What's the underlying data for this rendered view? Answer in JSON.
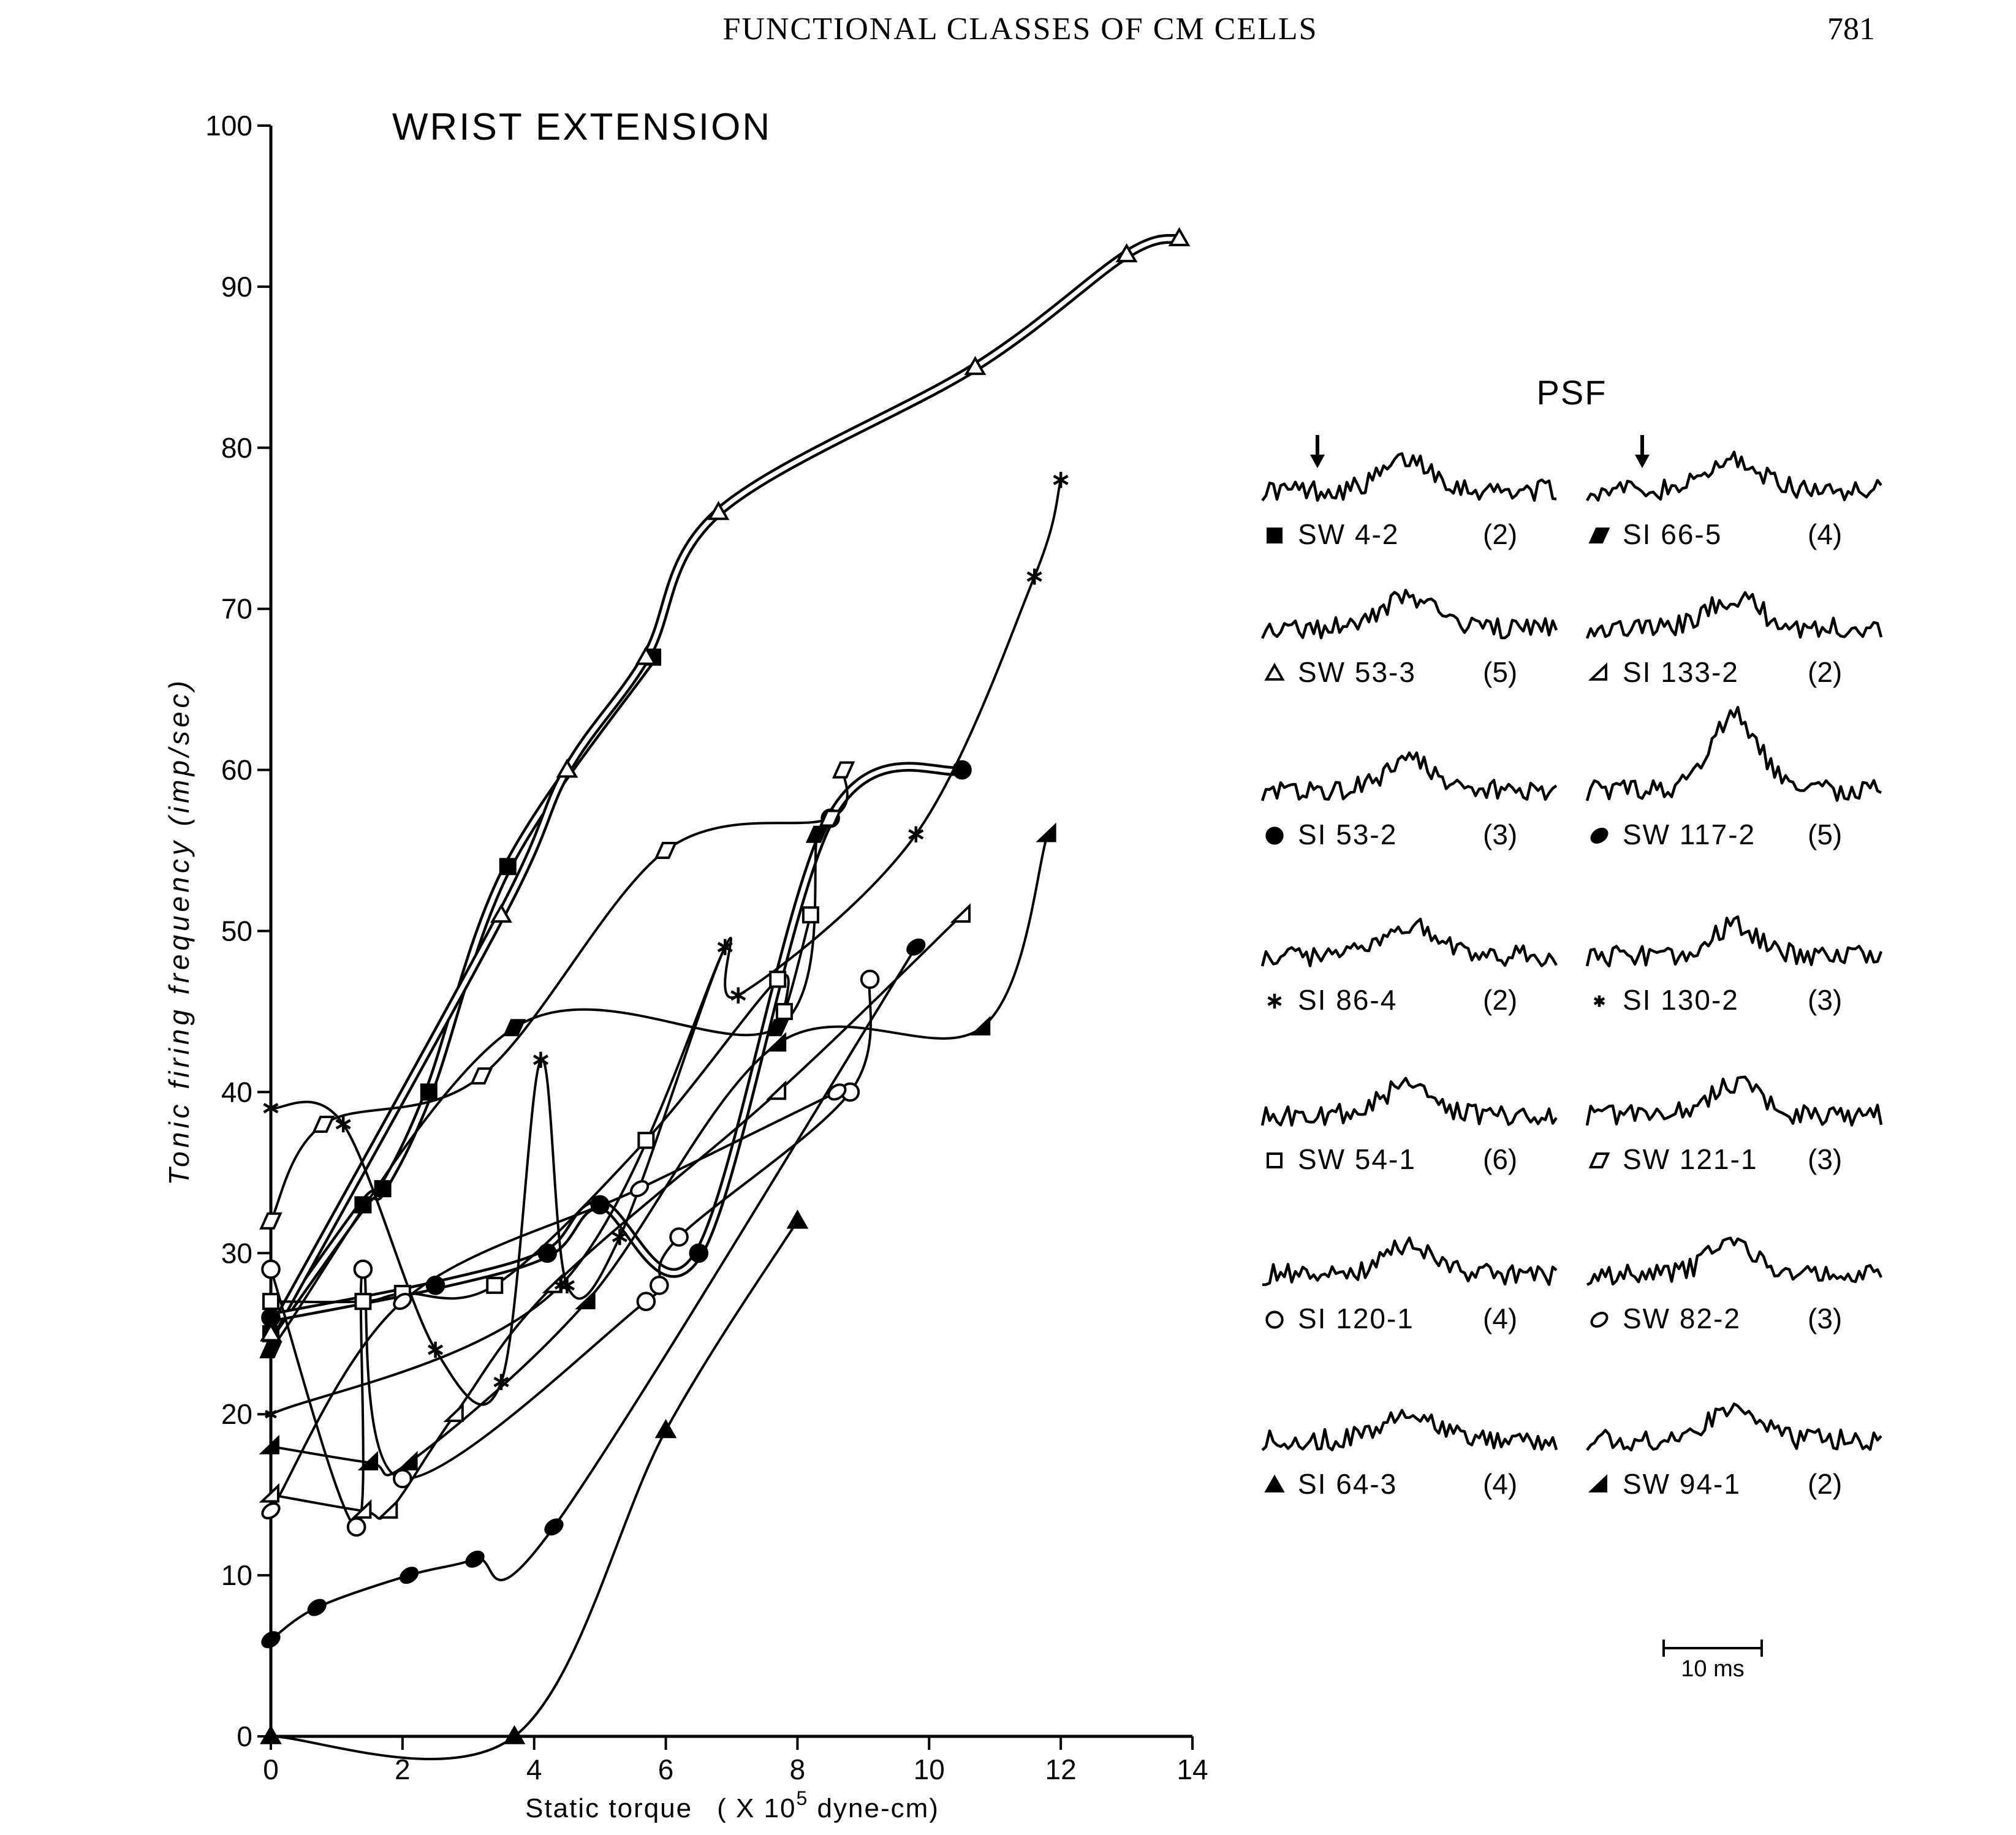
{
  "page": {
    "running_head": "FUNCTIONAL CLASSES OF CM CELLS",
    "page_number": "781"
  },
  "chart_data": {
    "type": "line",
    "title": "WRIST EXTENSION",
    "xlabel": "Static torque",
    "xlabel_unit_prefix": "( X 10",
    "xlabel_unit_exp": "5",
    "xlabel_unit_suffix": " dyne-cm)",
    "ylabel": "Tonic firing frequency (imp/sec)",
    "xlim": [
      0,
      14
    ],
    "ylim": [
      0,
      100
    ],
    "x_ticks": [
      "0",
      "2",
      "4",
      "6",
      "8",
      "10",
      "12",
      "14"
    ],
    "y_ticks": [
      "0",
      "10",
      "20",
      "30",
      "40",
      "50",
      "60",
      "70",
      "80",
      "90",
      "100"
    ],
    "grid": false,
    "series": [
      {
        "name": "SW 4-2",
        "marker": "filled-square",
        "style": "double",
        "x": [
          0,
          1.4,
          1.7,
          2.4,
          3.6,
          5.8
        ],
        "y": [
          25,
          33,
          34,
          40,
          54,
          67
        ]
      },
      {
        "name": "SW 53-3",
        "marker": "open-triangle",
        "style": "double",
        "x": [
          0,
          3.5,
          4.5,
          5.7,
          6.8,
          10.7,
          13,
          13.8
        ],
        "y": [
          25,
          51,
          60,
          67,
          76,
          85,
          92,
          93
        ]
      },
      {
        "name": "SI 53-2",
        "marker": "filled-circle",
        "style": "double",
        "x": [
          0,
          2.5,
          4.2,
          5,
          6.5,
          8.5,
          10.5
        ],
        "y": [
          26,
          28,
          30,
          33,
          30,
          57,
          60
        ]
      },
      {
        "name": "SI 86-4",
        "marker": "asterisk",
        "style": "single",
        "x": [
          0,
          1.1,
          2.5,
          3.5,
          4.1,
          4.5,
          5.3,
          6.9,
          7.1,
          9.8,
          11.6,
          12
        ],
        "y": [
          39,
          38,
          24,
          22,
          42,
          28,
          31,
          49,
          46,
          56,
          72,
          78
        ]
      },
      {
        "name": "SW 54-1",
        "marker": "open-square",
        "style": "single",
        "x": [
          0,
          1.4,
          2,
          3.4,
          5.7,
          7.7,
          7.8,
          8.2
        ],
        "y": [
          27,
          27,
          27.5,
          28,
          37,
          47,
          45,
          51
        ]
      },
      {
        "name": "SI 120-1",
        "marker": "open-circle",
        "style": "single",
        "x": [
          0,
          1.3,
          1.4,
          2,
          5.7,
          5.9,
          6.2,
          8.8,
          9.1
        ],
        "y": [
          29,
          13,
          29,
          16,
          27,
          28,
          31,
          40,
          47
        ]
      },
      {
        "name": "SI 64-3",
        "marker": "filled-triangle",
        "style": "single",
        "x": [
          0,
          3.7,
          6,
          8
        ],
        "y": [
          0,
          0,
          19,
          32
        ]
      },
      {
        "name": "SI 66-5",
        "marker": "filled-parallelogram",
        "style": "single",
        "x": [
          0,
          3.7,
          7.7,
          8.3
        ],
        "y": [
          24,
          44,
          44,
          56
        ]
      },
      {
        "name": "SI 133-2",
        "marker": "open-half-triangle",
        "style": "single",
        "x": [
          0,
          1.4,
          1.8,
          2.8,
          4.3,
          7.7,
          10.5
        ],
        "y": [
          15,
          14,
          14,
          20,
          28,
          40,
          51
        ]
      },
      {
        "name": "SW 117-2",
        "marker": "filled-ellipse",
        "style": "single",
        "x": [
          0,
          0.7,
          2.1,
          3.1,
          4.3,
          9.8
        ],
        "y": [
          6,
          8,
          10,
          11,
          13,
          49
        ]
      },
      {
        "name": "SI 130-2",
        "marker": "small-asterisk",
        "style": "single",
        "x": [
          0,
          4.4,
          6.9
        ],
        "y": [
          20,
          28,
          49
        ]
      },
      {
        "name": "SW 121-1",
        "marker": "open-parallelogram",
        "style": "single",
        "x": [
          0,
          0.8,
          3.2,
          6,
          8.5,
          8.7
        ],
        "y": [
          32,
          38,
          41,
          55,
          57,
          60
        ]
      },
      {
        "name": "SW 82-2",
        "marker": "open-ellipse",
        "style": "single",
        "x": [
          0,
          2,
          5.6,
          8.6
        ],
        "y": [
          14,
          27,
          34,
          40
        ]
      },
      {
        "name": "SW 94-1",
        "marker": "filled-half-triangle",
        "style": "single",
        "x": [
          0,
          1.5,
          2.1,
          4.8,
          7.7,
          10.8,
          11.8
        ],
        "y": [
          18,
          17,
          17,
          27,
          43,
          44,
          56
        ]
      }
    ]
  },
  "psf": {
    "title": "PSF",
    "scale_label": "10 ms",
    "items": [
      {
        "label": "SW 4-2",
        "count": "(2)",
        "marker": "filled-square",
        "arrow": true
      },
      {
        "label": "SI 66-5",
        "count": "(4)",
        "marker": "filled-parallelogram",
        "arrow": true
      },
      {
        "label": "SW 53-3",
        "count": "(5)",
        "marker": "open-triangle",
        "arrow": false
      },
      {
        "label": "SI 133-2",
        "count": "(2)",
        "marker": "open-half-triangle",
        "arrow": false
      },
      {
        "label": "SI 53-2",
        "count": "(3)",
        "marker": "filled-circle",
        "arrow": false
      },
      {
        "label": "SW 117-2",
        "count": "(5)",
        "marker": "filled-ellipse",
        "arrow": false
      },
      {
        "label": "SI 86-4",
        "count": "(2)",
        "marker": "asterisk",
        "arrow": false
      },
      {
        "label": "SI 130-2",
        "count": "(3)",
        "marker": "small-asterisk",
        "arrow": false
      },
      {
        "label": "SW 54-1",
        "count": "(6)",
        "marker": "open-square",
        "arrow": false
      },
      {
        "label": "SW 121-1",
        "count": "(3)",
        "marker": "open-parallelogram",
        "arrow": false
      },
      {
        "label": "SI 120-1",
        "count": "(4)",
        "marker": "open-circle",
        "arrow": false
      },
      {
        "label": "SW 82-2",
        "count": "(3)",
        "marker": "open-ellipse",
        "arrow": false
      },
      {
        "label": "SI 64-3",
        "count": "(4)",
        "marker": "filled-triangle",
        "arrow": false
      },
      {
        "label": "SW 94-1",
        "count": "(2)",
        "marker": "filled-half-triangle",
        "arrow": false
      }
    ]
  }
}
